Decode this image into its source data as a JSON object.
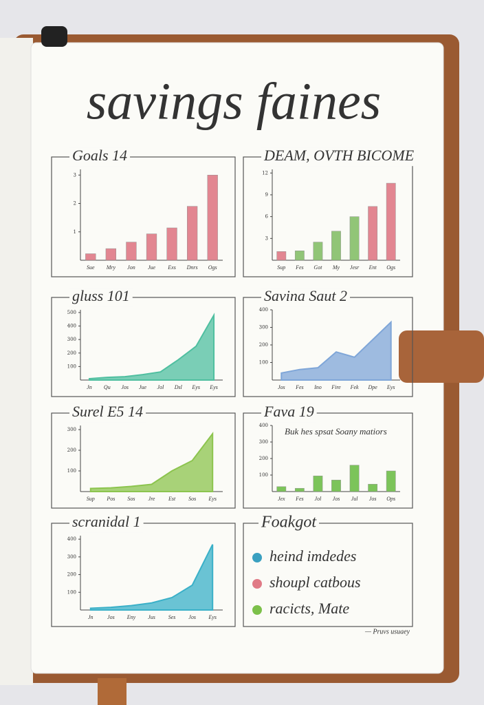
{
  "title": "savings faines",
  "chart_data": [
    {
      "type": "bar",
      "title": "Goals 14",
      "categories": [
        "Sue",
        "Mry",
        "Jon",
        "Jue",
        "Exs",
        "Dnrs",
        "Ogs"
      ],
      "values": [
        0.23,
        0.41,
        0.64,
        0.93,
        1.14,
        1.9,
        3.0
      ],
      "color": "#e07a86",
      "ylim": [
        0,
        3.2
      ],
      "yticks": [
        1,
        2,
        3
      ]
    },
    {
      "type": "bar",
      "title": "DEAM, OVTH BICOME",
      "categories": [
        "Sup",
        "Fes",
        "Got",
        "My",
        "Jesr",
        "Ent",
        "Ogs"
      ],
      "values": [
        1.2,
        1.3,
        2.5,
        4.0,
        6.0,
        7.4,
        10.6
      ],
      "colors": [
        "#e07a86",
        "#86c06a",
        "#86c06a",
        "#86c06a",
        "#86c06a",
        "#e07a86",
        "#e07a86"
      ],
      "ylim": [
        0,
        12.5
      ],
      "yticks": [
        3,
        6,
        9,
        12
      ]
    },
    {
      "type": "area",
      "title": "gluss 101",
      "categories": [
        "Jn",
        "Qu",
        "Jos",
        "Jue",
        "Jol",
        "Dsl",
        "Eys",
        "Eys"
      ],
      "values": [
        10,
        20,
        25,
        40,
        60,
        150,
        250,
        480
      ],
      "color": "#4fbfa0",
      "ylim": [
        0,
        520
      ],
      "yticks": [
        100,
        200,
        300,
        400,
        500
      ]
    },
    {
      "type": "area",
      "title": "Savina Saut 2",
      "categories": [
        "Jos",
        "Fes",
        "Ino",
        "Fire",
        "Fek",
        "Dpe",
        "Eys"
      ],
      "values": [
        40,
        60,
        70,
        160,
        130,
        230,
        330
      ],
      "color": "#7fa6d8",
      "ylim": [
        0,
        400
      ],
      "yticks": [
        100,
        200,
        300,
        400
      ]
    },
    {
      "type": "area",
      "title": "Surel E5 14",
      "categories": [
        "Sup",
        "Pos",
        "Sos",
        "Jre",
        "Est",
        "Sos",
        "Eys"
      ],
      "values": [
        15,
        18,
        25,
        35,
        100,
        150,
        280
      ],
      "color": "#8cc44e",
      "ylim": [
        0,
        320
      ],
      "yticks": [
        100,
        200,
        300
      ]
    },
    {
      "type": "bar",
      "title": "Fava 19",
      "annotation": "Buk hes spsat Soany matiors",
      "categories": [
        "Jex",
        "Fes",
        "Jol",
        "Jos",
        "Jul",
        "Jos",
        "Ops"
      ],
      "values": [
        30,
        20,
        95,
        70,
        160,
        45,
        125
      ],
      "color": "#6fbf4a",
      "ylim": [
        0,
        400
      ],
      "yticks": [
        100,
        200,
        300,
        400
      ]
    },
    {
      "type": "area",
      "title": "scranidal 1",
      "categories": [
        "Jn",
        "Jos",
        "Eny",
        "Jus",
        "Ses",
        "Jos",
        "Eys"
      ],
      "values": [
        10,
        15,
        25,
        40,
        70,
        140,
        370
      ],
      "color": "#3ab0c8",
      "ylim": [
        0,
        420
      ],
      "yticks": [
        100,
        200,
        300,
        400
      ]
    }
  ],
  "legend": {
    "title": "Foakgot",
    "items": [
      {
        "label": "heind imdedes",
        "color": "#3aa0c0"
      },
      {
        "label": "shoupl catbous",
        "color": "#e07a86"
      },
      {
        "label": "racicts, Mate",
        "color": "#7cc04a"
      }
    ]
  },
  "footer": "— Pruvs usuaey"
}
